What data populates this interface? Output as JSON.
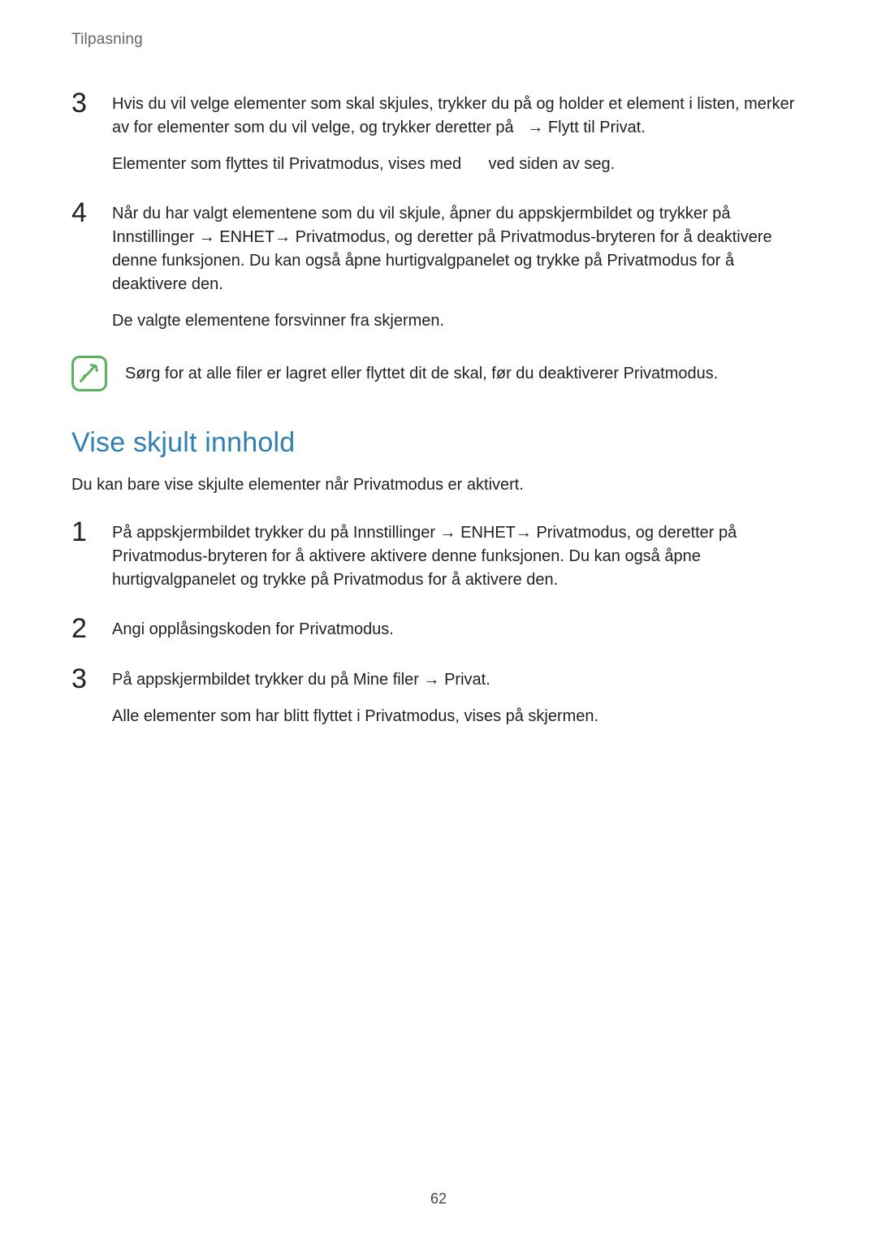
{
  "header": "Tilpasning",
  "steps_upper": [
    {
      "n": "3",
      "paragraphs": [
        "Hvis du vil velge elementer som skal skjules, trykker du på og holder et element i listen, merker av for elementer som du vil velge, og trykker deretter på   → <b>Flytt til Privat</b>.",
        "Elementer som flyttes til Privatmodus, vises med    ved siden av seg."
      ]
    },
    {
      "n": "4",
      "paragraphs": [
        "Når du har valgt elementene som du vil skjule, åpner du appskjermbildet og trykker på <b>Innstillinger</b> → <b>ENHET</b>→ <b>Privatmodus</b>, og deretter på <b>Privatmodus</b>-bryteren for å deaktivere denne funksjonen. Du kan også åpne hurtigvalgpanelet og trykke på <b>Privatmodus</b> for å deaktivere den.",
        "De valgte elementene forsvinner fra skjermen."
      ]
    }
  ],
  "note": "Sørg for at alle filer er lagret eller flyttet dit de skal, før du deaktiverer Privatmodus.",
  "section": {
    "heading": "Vise skjult innhold",
    "intro": "Du kan bare vise skjulte elementer når Privatmodus er aktivert.",
    "steps": [
      {
        "n": "1",
        "paragraphs": [
          "På appskjermbildet trykker du på <b>Innstillinger</b> → <b>ENHET</b>→ <b>Privatmodus</b>, og deretter på <b>Privatmodus</b>-bryteren for å aktivere aktivere denne funksjonen. Du kan også åpne hurtigvalgpanelet og trykke på <b>Privatmodus</b> for å aktivere den."
        ]
      },
      {
        "n": "2",
        "paragraphs": [
          "Angi opplåsingskoden for Privatmodus."
        ]
      },
      {
        "n": "3",
        "paragraphs": [
          "På appskjermbildet trykker du på <b>Mine filer</b> → <b>Privat</b>.",
          "Alle elementer som har blitt flyttet i Privatmodus, vises på skjermen."
        ]
      }
    ]
  },
  "page_number": "62",
  "colors": {
    "heading": "#2e7fb2",
    "note_border": "#5bb25e",
    "text": "#222222",
    "header_text": "#666666"
  }
}
